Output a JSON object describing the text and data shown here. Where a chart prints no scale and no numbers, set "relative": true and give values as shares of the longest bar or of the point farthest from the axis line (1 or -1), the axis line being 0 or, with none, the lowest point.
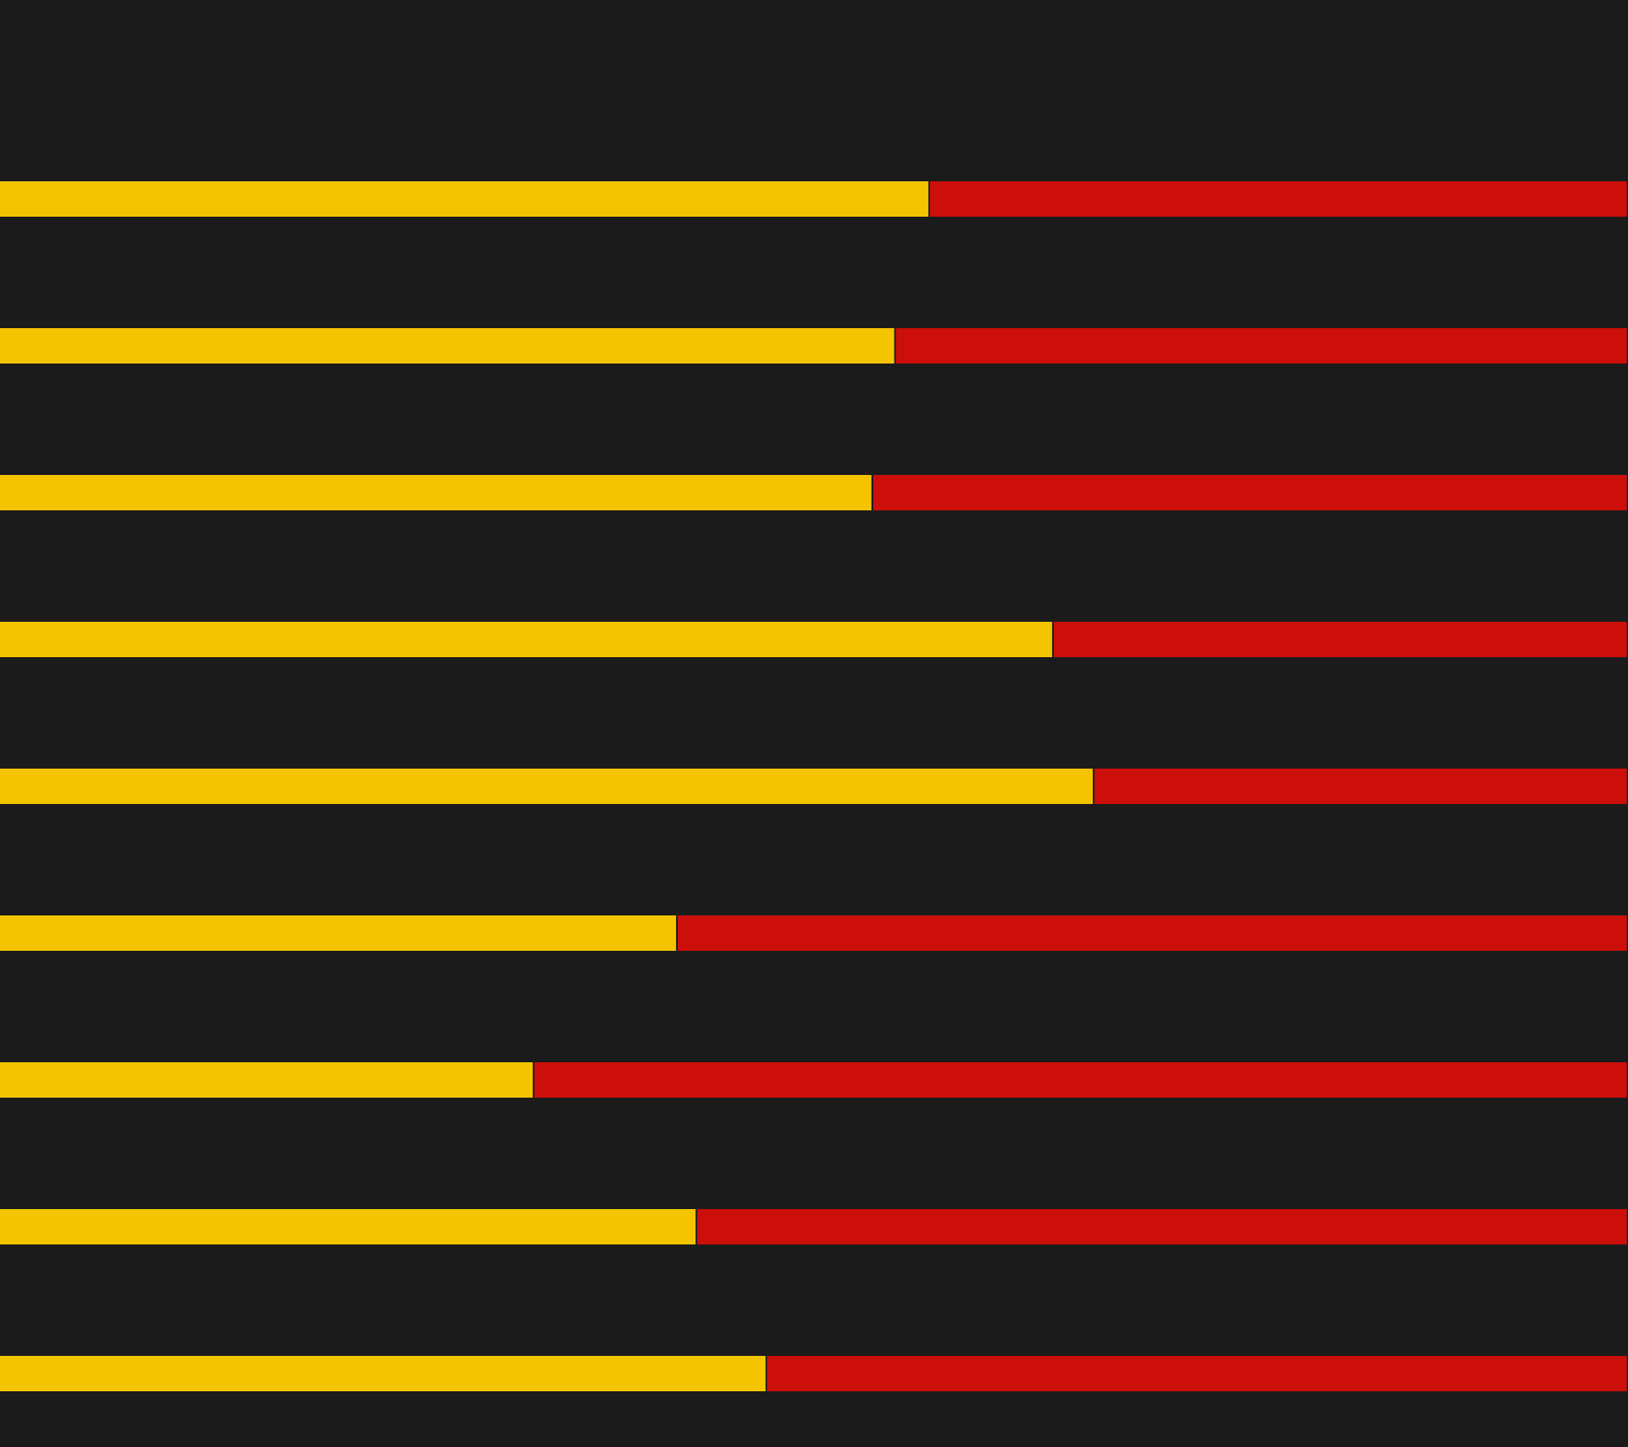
{
  "chart_data": {
    "type": "bar",
    "orientation": "horizontal",
    "stacked": true,
    "relative": true,
    "legend": false,
    "categories": [
      null,
      null,
      null,
      null,
      null,
      null,
      null,
      null,
      null
    ],
    "series": [
      {
        "color": "#f5c400",
        "values": [
          0.571,
          0.55,
          0.536,
          0.647,
          0.672,
          0.416,
          0.328,
          0.428,
          0.471
        ]
      },
      {
        "color": "#cc0f0a",
        "values": [
          0.429,
          0.45,
          0.464,
          0.353,
          0.328,
          0.584,
          0.672,
          0.572,
          0.529
        ]
      }
    ]
  }
}
